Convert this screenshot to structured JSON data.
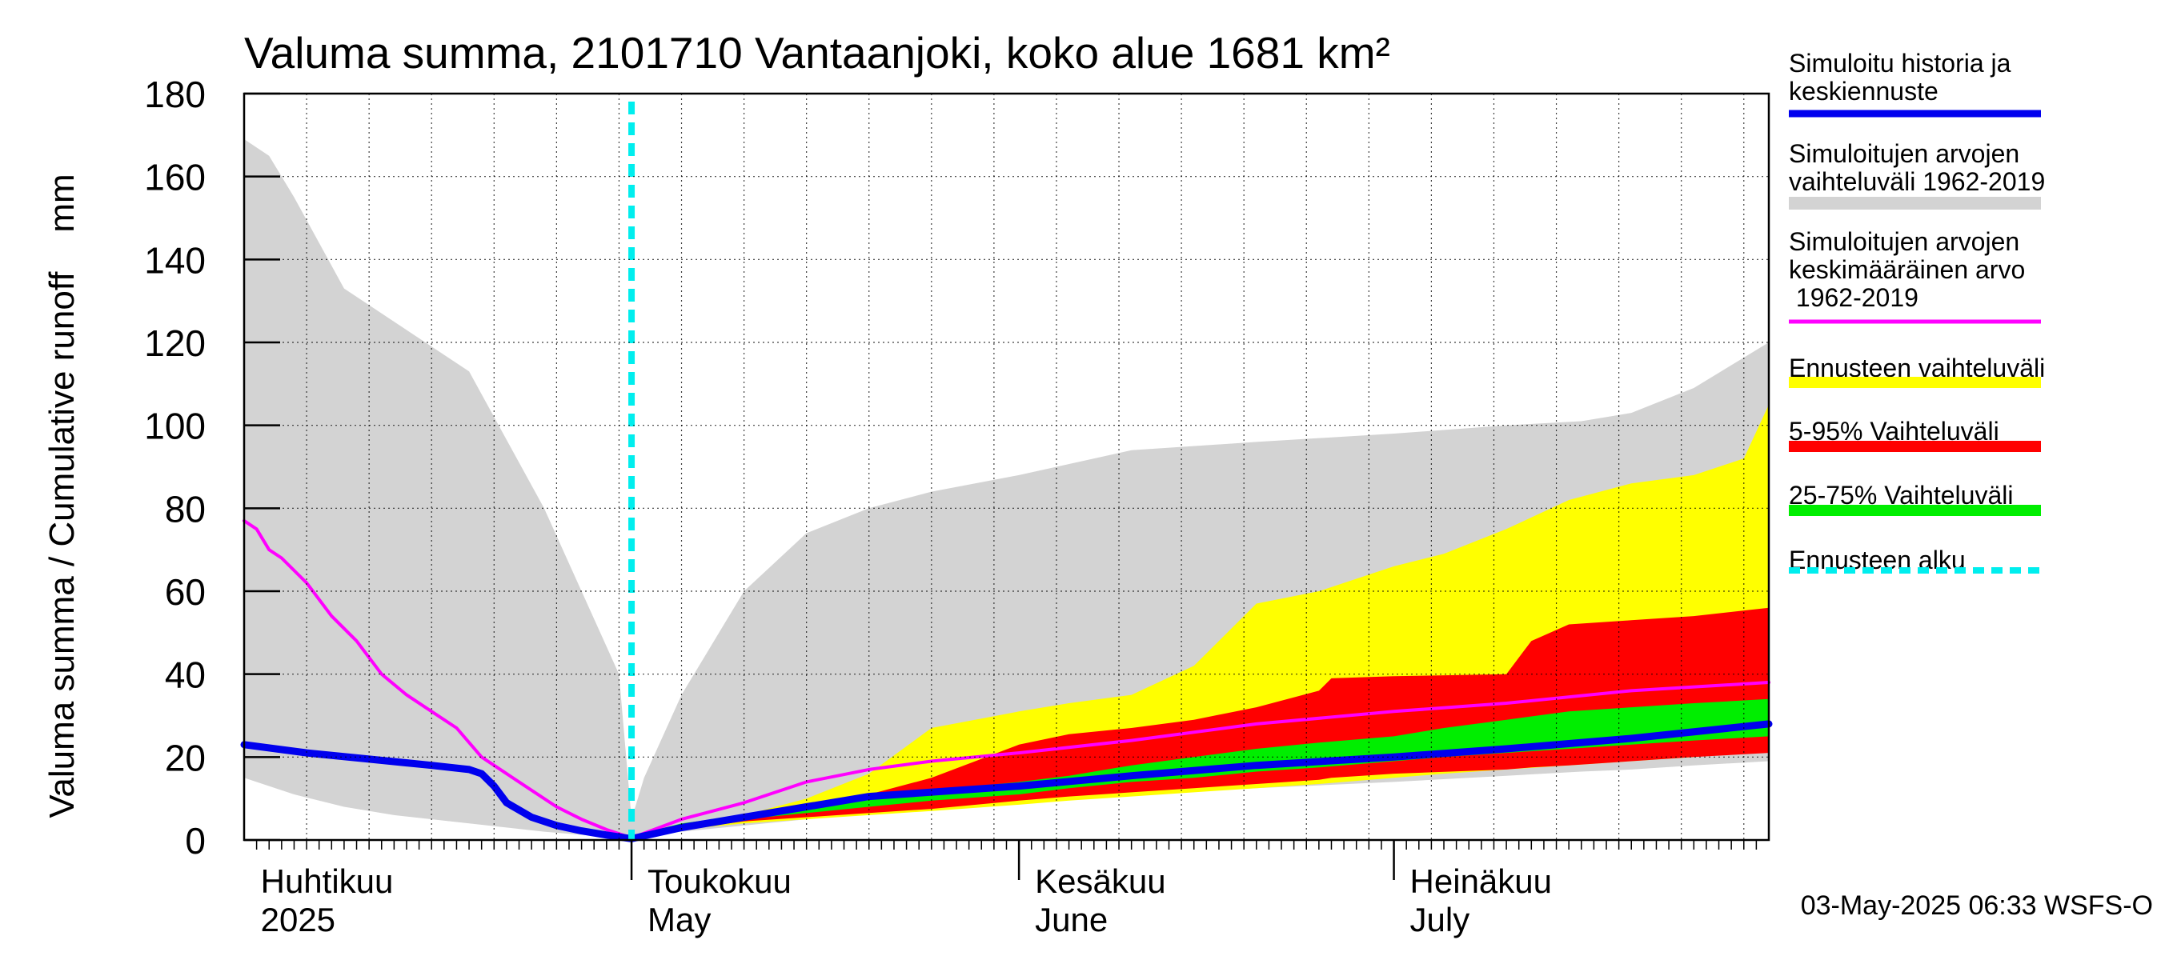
{
  "chart_data": {
    "type": "area",
    "title": "Valuma summa, 2101710 Vantaanjoki, koko alue 1681 km²",
    "ylabel": "Valuma summa / Cumulative runoff    mm",
    "ylim": [
      0,
      180
    ],
    "yticks": [
      0,
      20,
      40,
      60,
      80,
      100,
      120,
      140,
      160,
      180
    ],
    "xlim": [
      "2025-03-31",
      "2025-07-31"
    ],
    "grid": true,
    "forecast_start": "2025-05-01",
    "month_labels": [
      {
        "date": "2025-04-01",
        "fi": "Huhtikuu",
        "en": "2025"
      },
      {
        "date": "2025-05-01",
        "fi": "Toukokuu",
        "en": "May"
      },
      {
        "date": "2025-06-01",
        "fi": "Kesäkuu",
        "en": "June"
      },
      {
        "date": "2025-07-01",
        "fi": "Heinäkuu",
        "en": "July"
      }
    ],
    "footer": "03-May-2025 06:33 WSFS-O",
    "legend_position": "right",
    "legend": [
      {
        "label": "Simuloitu historia ja\nkeskiennuste",
        "color": "#0000ee",
        "style": "solid"
      },
      {
        "label": "Simuloitujen arvojen\nvaihteluväli 1962-2019",
        "color": "#d3d3d3",
        "style": "solid"
      },
      {
        "label": "Simuloitujen arvojen\nkeskimääräinen arvo\n   1962-2019",
        "color": "#ff00ff",
        "style": "thin"
      },
      {
        "label": "Ennusteen vaihteluväli",
        "color": "#ffff00",
        "style": "solid"
      },
      {
        "label": "5-95% Vaihteluväli",
        "color": "#ff0000",
        "style": "solid"
      },
      {
        "label": "25-75% Vaihteluväli",
        "color": "#00ee00",
        "style": "solid"
      },
      {
        "label": "Ennusteen alku",
        "color": "#00eeee",
        "style": "dashed"
      }
    ],
    "series": [
      {
        "name": "Simuloitujen arvojen vaihteluväli 1962-2019",
        "kind": "band",
        "color": "#d3d3d3",
        "x": [
          "2025-03-31",
          "2025-04-02",
          "2025-04-04",
          "2025-04-08",
          "2025-04-12",
          "2025-04-18",
          "2025-04-24",
          "2025-04-30",
          "2025-05-01",
          "2025-05-02",
          "2025-05-05",
          "2025-05-10",
          "2025-05-15",
          "2025-05-20",
          "2025-05-25",
          "2025-06-01",
          "2025-06-10",
          "2025-06-20",
          "2025-07-01",
          "2025-07-10",
          "2025-07-16",
          "2025-07-20",
          "2025-07-25",
          "2025-07-31"
        ],
        "upper": [
          169,
          165,
          155,
          133,
          125,
          113,
          80,
          40,
          5,
          15,
          35,
          60,
          74,
          80,
          84,
          88,
          94,
          96,
          98,
          100,
          101,
          103,
          109,
          120
        ],
        "lower": [
          15,
          13,
          11,
          8,
          6,
          4,
          2,
          0.5,
          0.2,
          0.8,
          2,
          3.5,
          5,
          6.5,
          8,
          9.5,
          11,
          12.5,
          14,
          15.5,
          16.5,
          17,
          18,
          19
        ]
      },
      {
        "name": "Ennusteen vaihteluväli",
        "kind": "band",
        "color": "#ffff00",
        "x": [
          "2025-05-01",
          "2025-05-05",
          "2025-05-10",
          "2025-05-15",
          "2025-05-20",
          "2025-05-25",
          "2025-06-01",
          "2025-06-05",
          "2025-06-10",
          "2025-06-15",
          "2025-06-20",
          "2025-06-25",
          "2025-07-01",
          "2025-07-05",
          "2025-07-10",
          "2025-07-15",
          "2025-07-20",
          "2025-07-25",
          "2025-07-29",
          "2025-07-31"
        ],
        "upper": [
          0.5,
          3,
          6,
          10,
          16,
          27,
          31,
          33,
          35,
          42,
          57,
          60,
          66,
          69,
          75,
          82,
          86,
          88,
          92,
          105
        ],
        "lower": [
          0.5,
          2.5,
          4,
          5,
          6,
          7,
          8.5,
          9.5,
          10.5,
          11.5,
          12.5,
          13.5,
          15,
          16,
          17,
          18,
          19,
          20,
          21,
          22
        ]
      },
      {
        "name": "5-95% Vaihteluväli",
        "kind": "band",
        "color": "#ff0000",
        "x": [
          "2025-05-01",
          "2025-05-05",
          "2025-05-10",
          "2025-05-15",
          "2025-05-20",
          "2025-05-25",
          "2025-06-01",
          "2025-06-05",
          "2025-06-10",
          "2025-06-15",
          "2025-06-20",
          "2025-06-25",
          "2025-06-26",
          "2025-07-01",
          "2025-07-10",
          "2025-07-12",
          "2025-07-15",
          "2025-07-20",
          "2025-07-25",
          "2025-07-31"
        ],
        "upper": [
          0.5,
          3,
          5,
          8,
          11,
          15,
          23,
          25.5,
          27,
          29,
          32,
          36,
          39,
          39.5,
          40,
          48,
          52,
          53,
          54,
          56
        ],
        "lower": [
          0.5,
          2.5,
          4.5,
          5.5,
          6.5,
          7.5,
          9.5,
          10.5,
          11.5,
          12.5,
          13.5,
          14.5,
          15,
          16,
          17,
          17.5,
          18,
          19,
          20,
          21
        ]
      },
      {
        "name": "25-75% Vaihteluväli",
        "kind": "band",
        "color": "#00ee00",
        "x": [
          "2025-05-01",
          "2025-05-05",
          "2025-05-10",
          "2025-05-15",
          "2025-05-20",
          "2025-05-25",
          "2025-06-01",
          "2025-06-05",
          "2025-06-10",
          "2025-06-15",
          "2025-06-20",
          "2025-06-25",
          "2025-07-01",
          "2025-07-05",
          "2025-07-10",
          "2025-07-15",
          "2025-07-20",
          "2025-07-25",
          "2025-07-31"
        ],
        "upper": [
          1,
          4,
          6,
          8,
          10,
          12,
          14,
          15.5,
          18,
          20,
          22,
          23.5,
          25,
          27,
          29,
          31,
          32,
          33,
          34
        ],
        "lower": [
          1,
          3,
          5,
          6.5,
          8,
          9.5,
          11,
          12.5,
          14,
          15,
          16.5,
          17.5,
          19,
          20,
          21,
          22,
          23,
          24,
          25
        ]
      },
      {
        "name": "Simuloitujen arvojen keskimääräinen arvo 1962-2019",
        "kind": "line",
        "color": "#ff00ff",
        "width": 4,
        "x": [
          "2025-03-31",
          "2025-04-01",
          "2025-04-02",
          "2025-04-03",
          "2025-04-05",
          "2025-04-07",
          "2025-04-09",
          "2025-04-11",
          "2025-04-13",
          "2025-04-15",
          "2025-04-17",
          "2025-04-19",
          "2025-04-21",
          "2025-04-23",
          "2025-04-25",
          "2025-04-27",
          "2025-04-29",
          "2025-05-01",
          "2025-05-05",
          "2025-05-10",
          "2025-05-15",
          "2025-05-20",
          "2025-05-25",
          "2025-06-01",
          "2025-06-10",
          "2025-06-20",
          "2025-07-01",
          "2025-07-10",
          "2025-07-20",
          "2025-07-31"
        ],
        "y": [
          77,
          75,
          70,
          68,
          62,
          54,
          48,
          40,
          35,
          31,
          27,
          20,
          16,
          12,
          8,
          5,
          2.5,
          0.5,
          5,
          9,
          14,
          17,
          19,
          21,
          24,
          28,
          31,
          33,
          36,
          38
        ]
      },
      {
        "name": "Simuloitu historia ja keskiennuste",
        "kind": "line",
        "color": "#0000ee",
        "width": 9,
        "x": [
          "2025-03-31",
          "2025-04-05",
          "2025-04-10",
          "2025-04-15",
          "2025-04-18",
          "2025-04-19",
          "2025-04-20",
          "2025-04-21",
          "2025-04-23",
          "2025-04-25",
          "2025-04-27",
          "2025-04-29",
          "2025-05-01",
          "2025-05-05",
          "2025-05-10",
          "2025-05-15",
          "2025-05-20",
          "2025-06-01",
          "2025-06-10",
          "2025-06-20",
          "2025-07-01",
          "2025-07-10",
          "2025-07-20",
          "2025-07-31"
        ],
        "y": [
          23,
          21,
          19.5,
          18,
          17,
          16,
          13,
          9,
          5.5,
          3.5,
          2.2,
          1.2,
          0.3,
          3,
          5.5,
          8,
          10.5,
          13,
          15.5,
          18,
          20,
          22,
          24.5,
          28
        ]
      },
      {
        "name": "Ennusteen alku",
        "kind": "vline",
        "color": "#00eeee",
        "width": 8,
        "x": [
          "2025-05-01"
        ]
      }
    ]
  }
}
